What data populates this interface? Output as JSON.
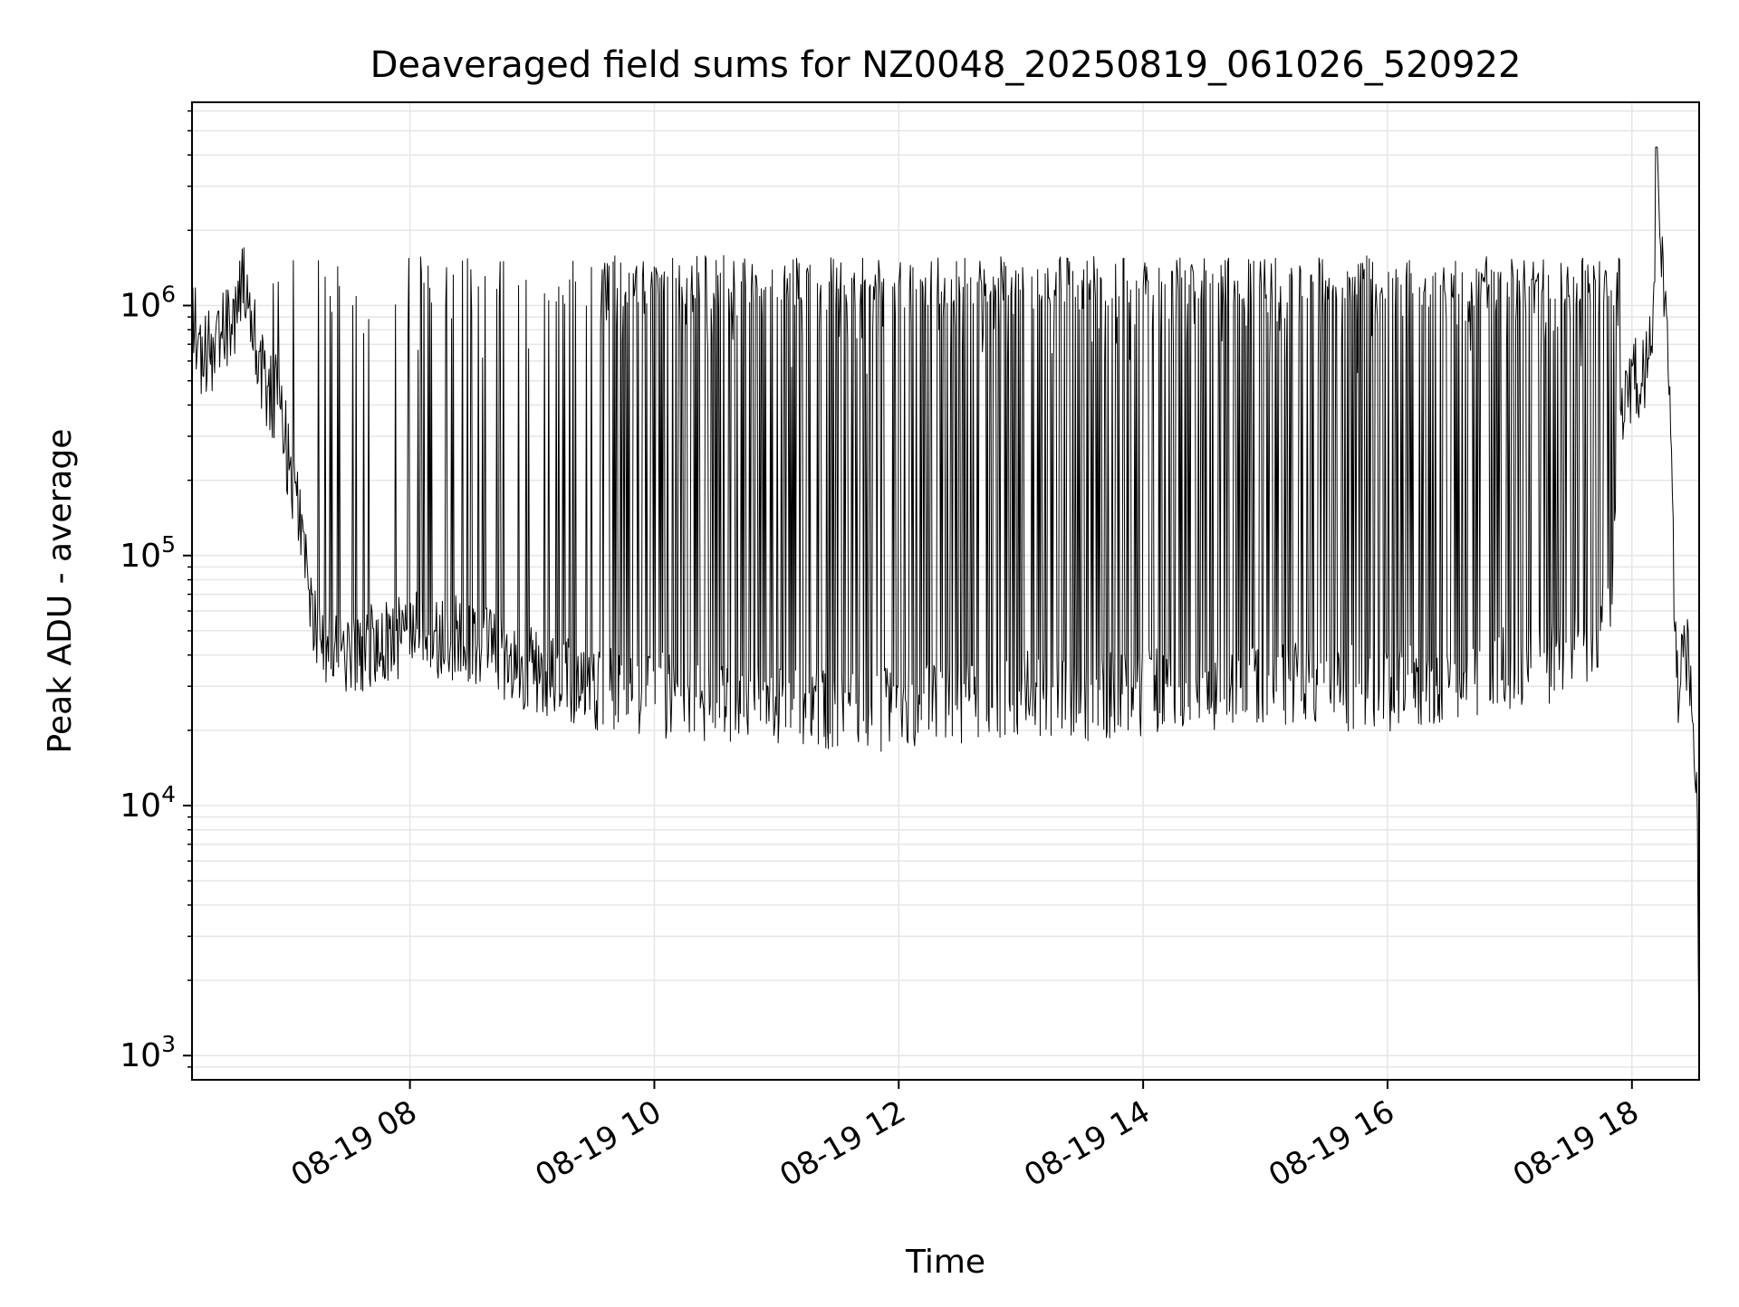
{
  "chart_data": {
    "type": "line",
    "title": "Deaveraged field sums for NZ0048_20250819_061026_520922",
    "xlabel": "Time",
    "ylabel": "Peak ADU - average",
    "yscale": "log",
    "ylim": [
      800,
      6500000
    ],
    "xlim": [
      "2025-08-19 06:13",
      "2025-08-19 18:33"
    ],
    "grid": true,
    "grid_color": "#e6e6e6",
    "line_color": "#000000",
    "x_ticks": [
      {
        "value": "2025-08-19 08:00",
        "label": "08-19 08"
      },
      {
        "value": "2025-08-19 10:00",
        "label": "08-19 10"
      },
      {
        "value": "2025-08-19 12:00",
        "label": "08-19 12"
      },
      {
        "value": "2025-08-19 14:00",
        "label": "08-19 14"
      },
      {
        "value": "2025-08-19 16:00",
        "label": "08-19 16"
      },
      {
        "value": "2025-08-19 18:00",
        "label": "08-19 18"
      }
    ],
    "y_ticks": [
      {
        "value": 1000,
        "base": "10",
        "exp": "3"
      },
      {
        "value": 10000,
        "base": "10",
        "exp": "4"
      },
      {
        "value": 100000,
        "base": "10",
        "exp": "5"
      },
      {
        "value": 1000000,
        "base": "10",
        "exp": "6"
      }
    ],
    "series": [
      {
        "points": [
          [
            "2025-08-19 06:13",
            950000
          ],
          [
            "2025-08-19 06:18",
            620000
          ],
          [
            "2025-08-19 06:25",
            700000
          ],
          [
            "2025-08-19 06:33",
            900000
          ],
          [
            "2025-08-19 06:40",
            1300000
          ],
          [
            "2025-08-19 06:45",
            650000
          ],
          [
            "2025-08-19 06:50",
            420000
          ],
          [
            "2025-08-19 06:55",
            450000
          ],
          [
            "2025-08-19 07:00",
            250000
          ],
          [
            "2025-08-19 07:05",
            150000
          ],
          [
            "2025-08-19 07:10",
            80000
          ],
          [
            "2025-08-19 07:15",
            45000
          ],
          [
            "2025-08-19 07:30",
            40000
          ],
          [
            "2025-08-19 08:00",
            50000
          ],
          [
            "2025-08-19 08:30",
            45000
          ],
          [
            "2025-08-19 09:00",
            35000
          ],
          [
            "2025-08-19 09:30",
            30000
          ],
          [
            "2025-08-19 10:00",
            28000
          ],
          [
            "2025-08-19 10:30",
            27000
          ],
          [
            "2025-08-19 11:00",
            26000
          ],
          [
            "2025-08-19 11:30",
            25000
          ],
          [
            "2025-08-19 12:00",
            24000
          ],
          [
            "2025-08-19 12:30",
            26000
          ],
          [
            "2025-08-19 13:00",
            28000
          ],
          [
            "2025-08-19 13:30",
            27000
          ],
          [
            "2025-08-19 14:00",
            28000
          ],
          [
            "2025-08-19 14:30",
            30000
          ],
          [
            "2025-08-19 15:00",
            30000
          ],
          [
            "2025-08-19 15:30",
            30000
          ],
          [
            "2025-08-19 16:00",
            29000
          ],
          [
            "2025-08-19 16:30",
            32000
          ],
          [
            "2025-08-19 17:00",
            35000
          ],
          [
            "2025-08-19 17:30",
            40000
          ],
          [
            "2025-08-19 17:50",
            60000
          ],
          [
            "2025-08-19 17:55",
            400000
          ],
          [
            "2025-08-19 18:05",
            550000
          ],
          [
            "2025-08-19 18:10",
            650000
          ],
          [
            "2025-08-19 18:13",
            3000000
          ],
          [
            "2025-08-19 18:15",
            1500000
          ],
          [
            "2025-08-19 18:18",
            600000
          ],
          [
            "2025-08-19 18:22",
            30000
          ],
          [
            "2025-08-19 18:28",
            40000
          ],
          [
            "2025-08-19 18:32",
            9000
          ],
          [
            "2025-08-19 18:33",
            1000
          ]
        ],
        "peak_envelope": "spikes to about 1.0e6 - 1.6e6 throughout, maximum about 4.3e6 near 18:12"
      }
    ]
  }
}
